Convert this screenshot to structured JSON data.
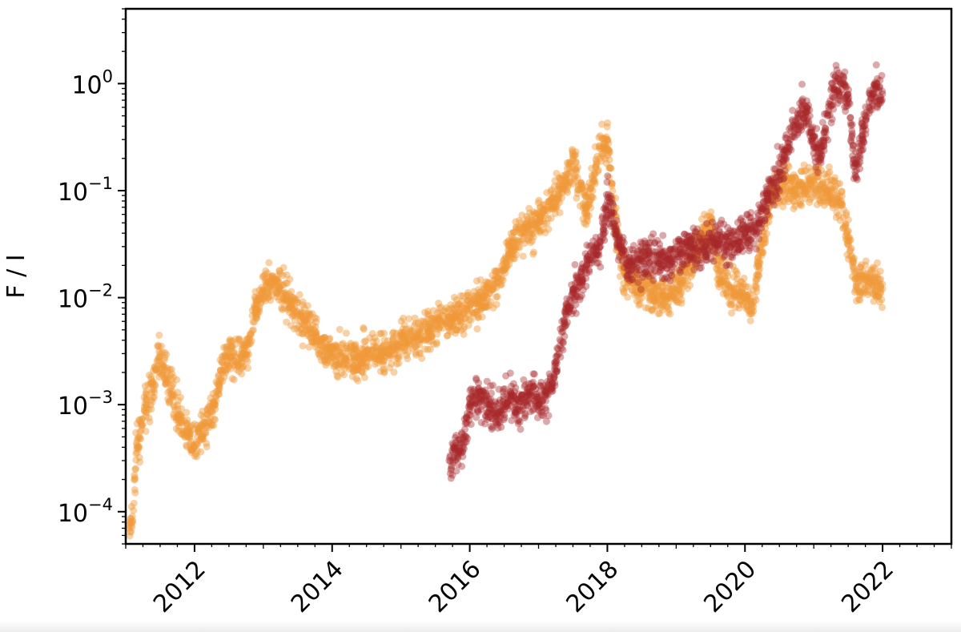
{
  "chart_data": {
    "type": "scatter",
    "title": "",
    "xlabel": "",
    "ylabel": "F / I",
    "xlim": [
      2011.0,
      2023.0
    ],
    "ylim": [
      5e-05,
      5
    ],
    "yscale": "log",
    "grid": false,
    "x_ticks": [
      2012,
      2014,
      2016,
      2018,
      2020,
      2022
    ],
    "x_tick_labels": [
      "2012",
      "2014",
      "2016",
      "2018",
      "2020",
      "2022"
    ],
    "y_ticks": [
      0.0001,
      0.001,
      0.01,
      0.1,
      1
    ],
    "y_tick_labels": [
      {
        "base": "10",
        "exp": "−4"
      },
      {
        "base": "10",
        "exp": "−3"
      },
      {
        "base": "10",
        "exp": "−2"
      },
      {
        "base": "10",
        "exp": "−1"
      },
      {
        "base": "10",
        "exp": "0"
      }
    ],
    "series": [
      {
        "color": "#f0983a",
        "opacity": 0.45,
        "x": [
          2011.05,
          2011.1,
          2011.15,
          2011.2,
          2011.3,
          2011.4,
          2011.5,
          2011.6,
          2011.7,
          2011.8,
          2011.9,
          2012.0,
          2012.1,
          2012.2,
          2012.3,
          2012.4,
          2012.5,
          2012.6,
          2012.7,
          2012.8,
          2012.9,
          2013.0,
          2013.1,
          2013.2,
          2013.3,
          2013.4,
          2013.5,
          2013.6,
          2013.7,
          2013.8,
          2013.9,
          2014.0,
          2014.2,
          2014.4,
          2014.6,
          2014.8,
          2015.0,
          2015.2,
          2015.4,
          2015.6,
          2015.8,
          2016.0,
          2016.2,
          2016.4,
          2016.6,
          2016.8,
          2017.0,
          2017.2,
          2017.4,
          2017.5,
          2017.7,
          2017.9,
          2018.0,
          2018.1,
          2018.2,
          2018.3,
          2018.5,
          2018.7,
          2018.9,
          2019.0,
          2019.2,
          2019.4,
          2019.5,
          2019.6,
          2019.8,
          2020.0,
          2020.1,
          2020.2,
          2020.4,
          2020.6,
          2020.8,
          2021.0,
          2021.2,
          2021.4,
          2021.6,
          2021.8,
          2022.0
        ],
        "y": [
          7e-05,
          8e-05,
          0.00035,
          0.0005,
          0.001,
          0.0015,
          0.003,
          0.0018,
          0.0012,
          0.0007,
          0.0005,
          0.0004,
          0.0006,
          0.0007,
          0.001,
          0.002,
          0.003,
          0.0028,
          0.003,
          0.004,
          0.008,
          0.012,
          0.013,
          0.014,
          0.011,
          0.009,
          0.007,
          0.006,
          0.005,
          0.004,
          0.0032,
          0.003,
          0.0027,
          0.0026,
          0.003,
          0.0032,
          0.0035,
          0.0042,
          0.005,
          0.006,
          0.007,
          0.008,
          0.01,
          0.014,
          0.03,
          0.04,
          0.05,
          0.08,
          0.13,
          0.2,
          0.06,
          0.25,
          0.3,
          0.06,
          0.02,
          0.015,
          0.012,
          0.011,
          0.01,
          0.012,
          0.02,
          0.04,
          0.05,
          0.02,
          0.012,
          0.01,
          0.008,
          0.02,
          0.1,
          0.12,
          0.1,
          0.12,
          0.1,
          0.08,
          0.015,
          0.014,
          0.012
        ]
      },
      {
        "color": "#a8282a",
        "opacity": 0.4,
        "x": [
          2015.7,
          2015.8,
          2015.9,
          2016.0,
          2016.1,
          2016.2,
          2016.3,
          2016.4,
          2016.5,
          2016.6,
          2016.7,
          2016.8,
          2016.9,
          2017.0,
          2017.1,
          2017.2,
          2017.3,
          2017.4,
          2017.5,
          2017.6,
          2017.7,
          2017.8,
          2017.9,
          2018.0,
          2018.1,
          2018.2,
          2018.3,
          2018.5,
          2018.7,
          2018.9,
          2019.0,
          2019.2,
          2019.4,
          2019.6,
          2019.8,
          2020.0,
          2020.2,
          2020.3,
          2020.5,
          2020.7,
          2020.9,
          2021.0,
          2021.1,
          2021.2,
          2021.3,
          2021.4,
          2021.5,
          2021.6,
          2021.7,
          2021.8,
          2021.9,
          2022.0
        ],
        "y": [
          0.0003,
          0.00035,
          0.0004,
          0.001,
          0.0012,
          0.0011,
          0.0009,
          0.0008,
          0.001,
          0.0012,
          0.0009,
          0.0011,
          0.0013,
          0.001,
          0.0012,
          0.0016,
          0.003,
          0.007,
          0.012,
          0.014,
          0.02,
          0.025,
          0.03,
          0.08,
          0.05,
          0.03,
          0.02,
          0.022,
          0.025,
          0.02,
          0.025,
          0.03,
          0.028,
          0.035,
          0.03,
          0.04,
          0.05,
          0.08,
          0.15,
          0.4,
          0.6,
          0.25,
          0.2,
          0.5,
          0.9,
          1.0,
          0.8,
          0.15,
          0.3,
          0.6,
          0.9,
          0.8
        ]
      }
    ]
  }
}
